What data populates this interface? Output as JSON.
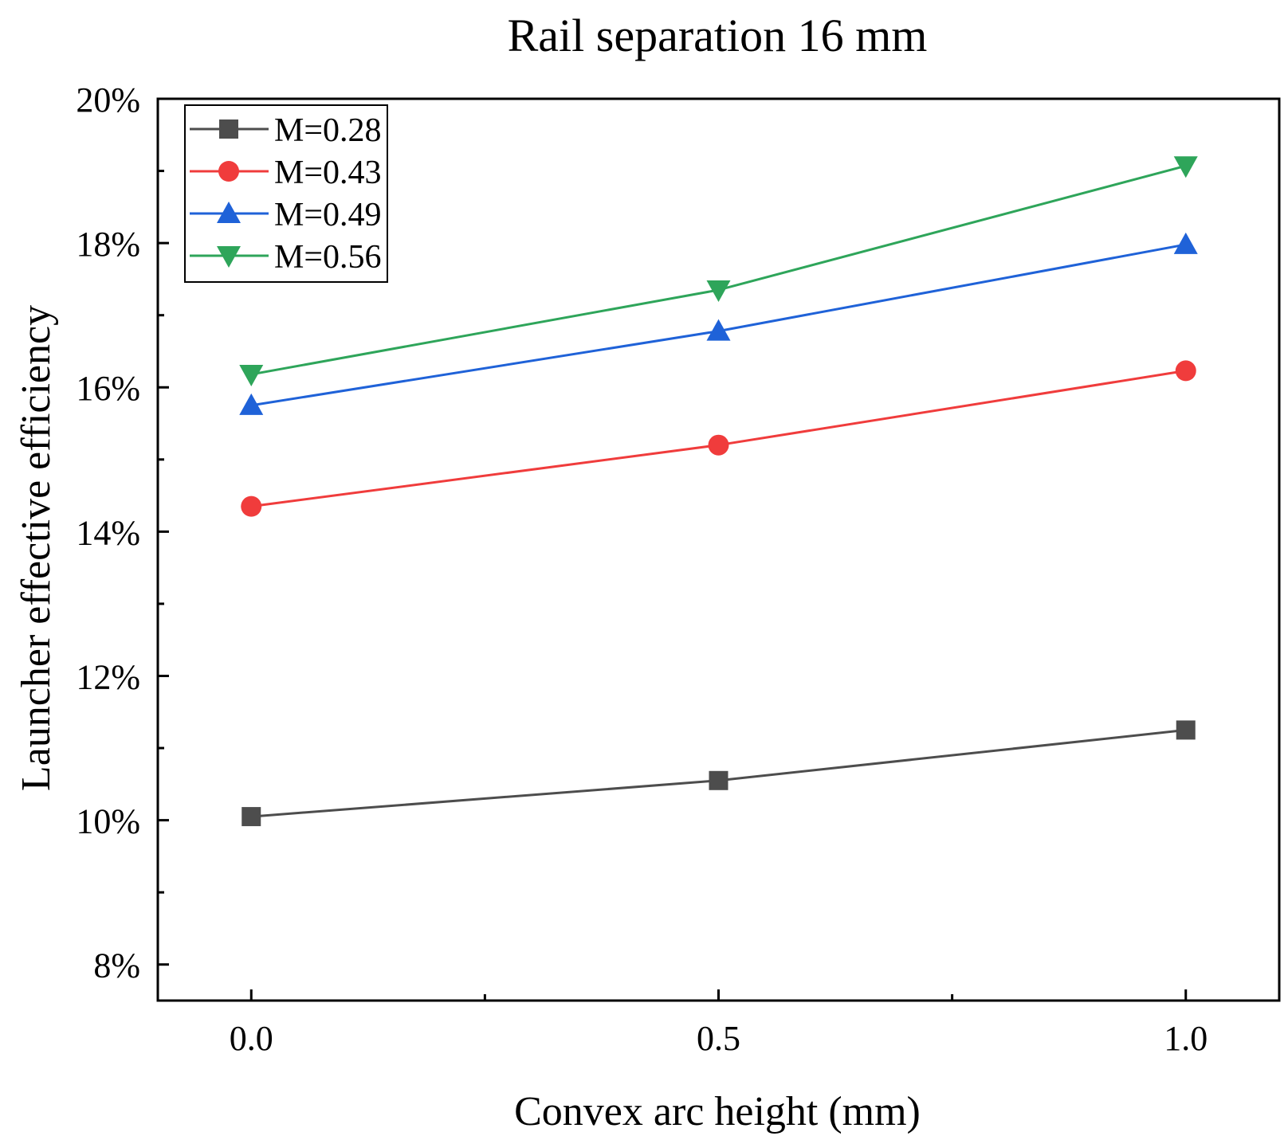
{
  "chart_data": {
    "type": "line",
    "title": "Rail separation 16 mm",
    "xlabel": "Convex arc height (mm)",
    "ylabel": "Launcher effective efficiency",
    "x": [
      0.0,
      0.5,
      1.0
    ],
    "x_ticks": [
      0.0,
      0.5,
      1.0
    ],
    "x_tick_labels": [
      "0.0",
      "0.5",
      "1.0"
    ],
    "x_minor_ticks": [
      0.25,
      0.75
    ],
    "xlim": [
      -0.1,
      1.1
    ],
    "ylim": [
      7.5,
      20
    ],
    "y_ticks": [
      8,
      10,
      12,
      14,
      16,
      18,
      20
    ],
    "y_tick_labels": [
      "8%",
      "10%",
      "12%",
      "14%",
      "16%",
      "18%",
      "20%"
    ],
    "y_minor_ticks": [
      9,
      11,
      13,
      15,
      17,
      19
    ],
    "grid": false,
    "legend_position": "top-left",
    "series": [
      {
        "name": "M=0.28",
        "values": [
          10.05,
          10.55,
          11.25
        ],
        "color": "#4d4d4d",
        "marker": "square"
      },
      {
        "name": "M=0.43",
        "values": [
          14.35,
          15.2,
          16.23
        ],
        "color": "#f03c3c",
        "marker": "circle"
      },
      {
        "name": "M=0.49",
        "values": [
          15.75,
          16.78,
          17.98
        ],
        "color": "#1f62d8",
        "marker": "triangle-up"
      },
      {
        "name": "M=0.56",
        "values": [
          16.18,
          17.35,
          19.07
        ],
        "color": "#2ea55a",
        "marker": "triangle-down"
      }
    ]
  }
}
